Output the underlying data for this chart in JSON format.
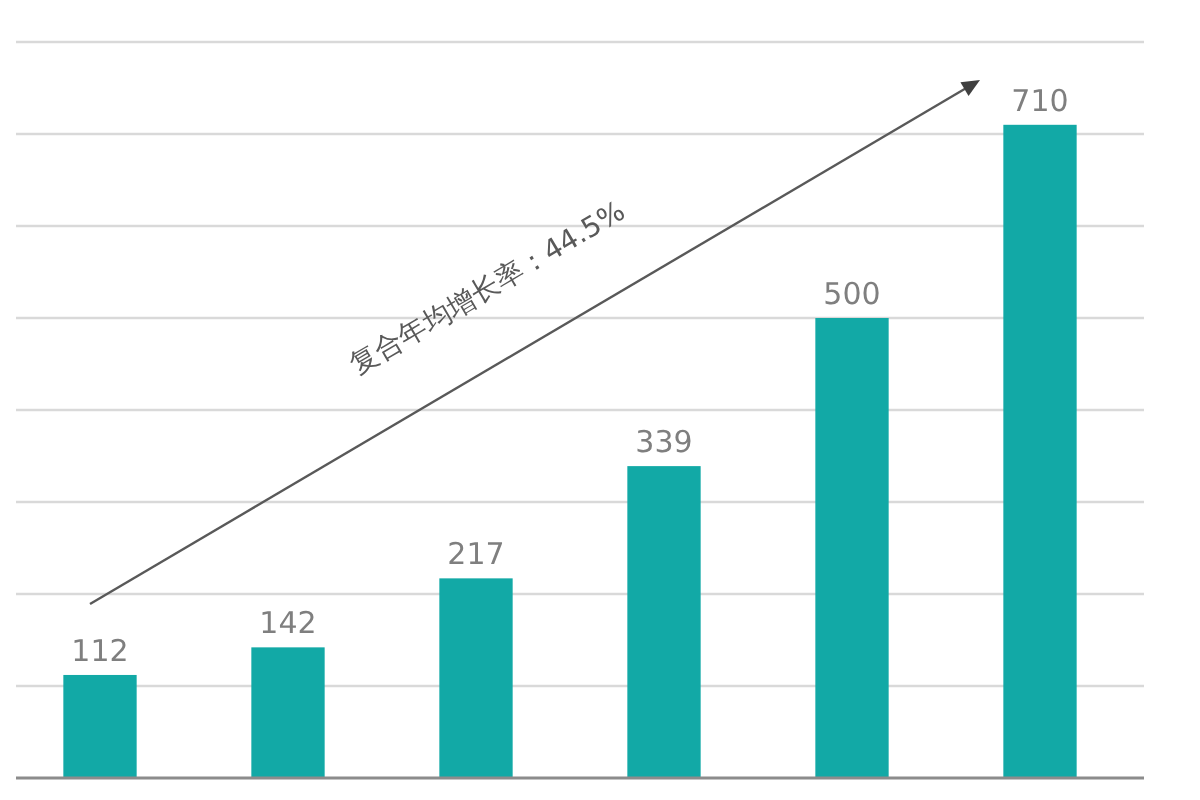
{
  "chart_data": {
    "type": "bar",
    "categories": [
      null,
      null,
      null,
      null,
      null,
      null
    ],
    "values": [
      112,
      142,
      217,
      339,
      500,
      710
    ],
    "color": "#12a9a6",
    "ylim": [
      0,
      800
    ],
    "yticks": [
      {
        "value": 100,
        "label": null
      },
      {
        "value": 200,
        "label": null
      },
      {
        "value": 300,
        "label": null
      },
      {
        "value": 400,
        "label": null
      },
      {
        "value": 500,
        "label": null
      },
      {
        "value": 600,
        "label": null
      },
      {
        "value": 700,
        "label": null
      },
      {
        "value": 800,
        "label": null
      }
    ],
    "grid": "y",
    "data_labels": true,
    "annotations": [
      "复合年均增长率：44.5%"
    ]
  }
}
